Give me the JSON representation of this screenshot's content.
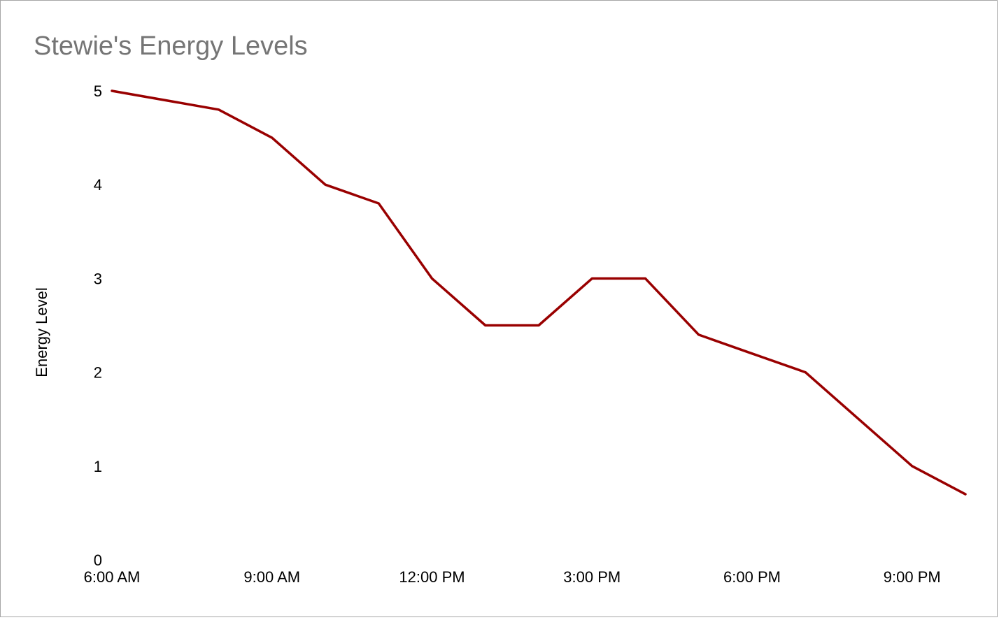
{
  "chart_data": {
    "type": "line",
    "title": "Stewie's Energy Levels",
    "xlabel": "",
    "ylabel": "Energy Level",
    "x_tick_labels": [
      "6:00 AM",
      "9:00 AM",
      "12:00 PM",
      "3:00 PM",
      "6:00 PM",
      "9:00 PM"
    ],
    "x_tick_hours": [
      6,
      9,
      12,
      15,
      18,
      21
    ],
    "y_tick_labels": [
      "0",
      "1",
      "2",
      "3",
      "4",
      "5"
    ],
    "xlim_hours": [
      6,
      22
    ],
    "ylim": [
      0,
      5
    ],
    "grid": false,
    "series": [
      {
        "color": "#990000",
        "x_hours": [
          6,
          8,
          9,
          10,
          11,
          12,
          13,
          14,
          15,
          16,
          17,
          18,
          19,
          20,
          21,
          22
        ],
        "values": [
          5,
          4.8,
          4.5,
          4,
          3.8,
          3,
          2.5,
          2.5,
          3,
          3,
          2.4,
          2.2,
          2,
          1.5,
          1,
          0.7
        ]
      }
    ]
  }
}
